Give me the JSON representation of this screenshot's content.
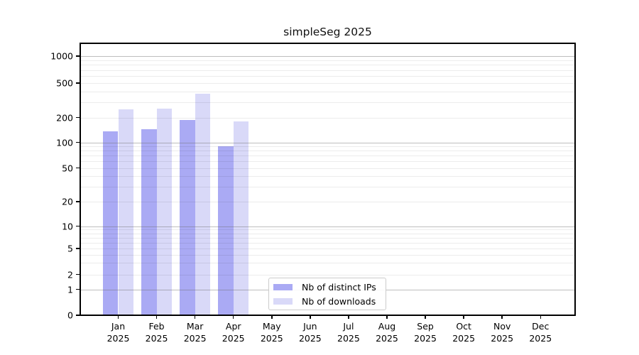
{
  "chart_data": {
    "type": "bar",
    "title": "simpleSeg 2025",
    "yscale": "symlog",
    "grid": true,
    "categories": [
      "Jan",
      "Feb",
      "Mar",
      "Apr",
      "May",
      "Jun",
      "Jul",
      "Aug",
      "Sep",
      "Oct",
      "Nov",
      "Dec"
    ],
    "category_year": "2025",
    "yticks": [
      0,
      1,
      2,
      5,
      10,
      20,
      50,
      100,
      200,
      500,
      1000
    ],
    "ylim": [
      0,
      1400
    ],
    "series": [
      {
        "name": "Nb of distinct IPs",
        "color": "#aaaaf4",
        "values": [
          137,
          145,
          185,
          90,
          null,
          null,
          null,
          null,
          null,
          null,
          null,
          null
        ]
      },
      {
        "name": "Nb of downloads",
        "color": "#d9d9f8",
        "values": [
          247,
          252,
          378,
          179,
          null,
          null,
          null,
          null,
          null,
          null,
          null,
          null
        ]
      }
    ],
    "legend": {
      "position": "lower-center-inside",
      "entries": [
        "Nb of distinct IPs",
        "Nb of downloads"
      ]
    },
    "colors": {
      "grid_major": "#9a9a9a",
      "grid_minor": "#ececec",
      "spine": "#000000",
      "background": "#ffffff"
    }
  }
}
